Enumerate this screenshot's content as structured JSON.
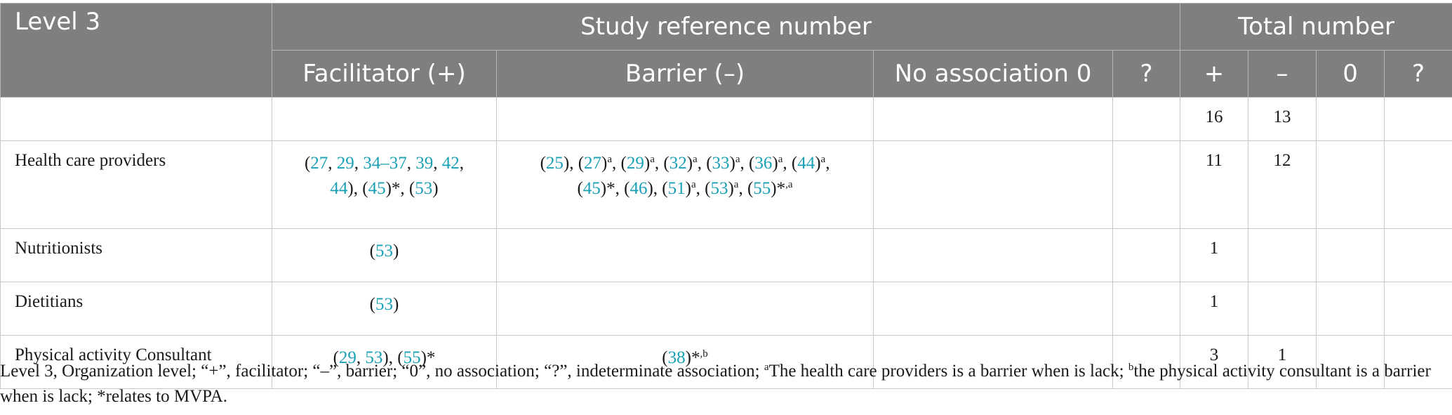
{
  "header": {
    "level_label": "Level 3",
    "study_ref_label": "Study reference number",
    "total_label": "Total number",
    "sub_facilitator": "Facilitator (+)",
    "sub_barrier": "Barrier (–)",
    "sub_no_assoc": "No association 0",
    "sub_q": "?",
    "sub_plus": "+",
    "sub_minus": "–",
    "sub_zero": "0",
    "sub_q2": "?"
  },
  "rows": [
    {
      "label": "",
      "facilitator": [],
      "barrier": [],
      "no_association": "",
      "question": "",
      "total_plus": "16",
      "total_minus": "13",
      "total_zero": "",
      "total_q": ""
    },
    {
      "label": "Health care providers",
      "facilitator": [
        {
          "t": "(",
          "k": "p"
        },
        {
          "t": "27",
          "k": "r"
        },
        {
          "t": ", ",
          "k": "p"
        },
        {
          "t": "29",
          "k": "r"
        },
        {
          "t": ", ",
          "k": "p"
        },
        {
          "t": "34–37",
          "k": "r"
        },
        {
          "t": ", ",
          "k": "p"
        },
        {
          "t": "39",
          "k": "r"
        },
        {
          "t": ", ",
          "k": "p"
        },
        {
          "t": "42",
          "k": "r"
        },
        {
          "t": ",",
          "k": "p"
        },
        {
          "t": "",
          "k": "br"
        },
        {
          "t": "44",
          "k": "r"
        },
        {
          "t": "), (",
          "k": "p"
        },
        {
          "t": "45",
          "k": "r"
        },
        {
          "t": ")*, (",
          "k": "p"
        },
        {
          "t": "53",
          "k": "r"
        },
        {
          "t": ")",
          "k": "p"
        }
      ],
      "barrier": [
        {
          "t": "(",
          "k": "p"
        },
        {
          "t": "25",
          "k": "r"
        },
        {
          "t": "), (",
          "k": "p"
        },
        {
          "t": "27",
          "k": "r"
        },
        {
          "t": ")",
          "k": "p"
        },
        {
          "t": "a",
          "k": "s"
        },
        {
          "t": ", (",
          "k": "p"
        },
        {
          "t": "29",
          "k": "r"
        },
        {
          "t": ")",
          "k": "p"
        },
        {
          "t": "a",
          "k": "s"
        },
        {
          "t": ", (",
          "k": "p"
        },
        {
          "t": "32",
          "k": "r"
        },
        {
          "t": ")",
          "k": "p"
        },
        {
          "t": "a",
          "k": "s"
        },
        {
          "t": ", (",
          "k": "p"
        },
        {
          "t": "33",
          "k": "r"
        },
        {
          "t": ")",
          "k": "p"
        },
        {
          "t": "a",
          "k": "s"
        },
        {
          "t": ", (",
          "k": "p"
        },
        {
          "t": "36",
          "k": "r"
        },
        {
          "t": ")",
          "k": "p"
        },
        {
          "t": "a",
          "k": "s"
        },
        {
          "t": ", (",
          "k": "p"
        },
        {
          "t": "44",
          "k": "r"
        },
        {
          "t": ")",
          "k": "p"
        },
        {
          "t": "a",
          "k": "s"
        },
        {
          "t": ",",
          "k": "p"
        },
        {
          "t": "",
          "k": "br"
        },
        {
          "t": "(",
          "k": "p"
        },
        {
          "t": "45",
          "k": "r"
        },
        {
          "t": ")*, (",
          "k": "p"
        },
        {
          "t": "46",
          "k": "r"
        },
        {
          "t": "), (",
          "k": "p"
        },
        {
          "t": "51",
          "k": "r"
        },
        {
          "t": ")",
          "k": "p"
        },
        {
          "t": "a",
          "k": "s"
        },
        {
          "t": ", (",
          "k": "p"
        },
        {
          "t": "53",
          "k": "r"
        },
        {
          "t": ")",
          "k": "p"
        },
        {
          "t": "a",
          "k": "s"
        },
        {
          "t": ", (",
          "k": "p"
        },
        {
          "t": "55",
          "k": "r"
        },
        {
          "t": ")*",
          "k": "p"
        },
        {
          "t": ",a",
          "k": "s"
        }
      ],
      "no_association": "",
      "question": "",
      "total_plus": "11",
      "total_minus": "12",
      "total_zero": "",
      "total_q": ""
    },
    {
      "label": "Nutritionists",
      "facilitator": [
        {
          "t": "(",
          "k": "p"
        },
        {
          "t": "53",
          "k": "r"
        },
        {
          "t": ")",
          "k": "p"
        }
      ],
      "barrier": [],
      "no_association": "",
      "question": "",
      "total_plus": "1",
      "total_minus": "",
      "total_zero": "",
      "total_q": ""
    },
    {
      "label": "Dietitians",
      "facilitator": [
        {
          "t": "(",
          "k": "p"
        },
        {
          "t": "53",
          "k": "r"
        },
        {
          "t": ")",
          "k": "p"
        }
      ],
      "barrier": [],
      "no_association": "",
      "question": "",
      "total_plus": "1",
      "total_minus": "",
      "total_zero": "",
      "total_q": ""
    },
    {
      "label": "Physical activity Consultant",
      "facilitator": [
        {
          "t": "(",
          "k": "p"
        },
        {
          "t": "29",
          "k": "r"
        },
        {
          "t": ", ",
          "k": "p"
        },
        {
          "t": "53",
          "k": "r"
        },
        {
          "t": "), (",
          "k": "p"
        },
        {
          "t": "55",
          "k": "r"
        },
        {
          "t": ")*",
          "k": "p"
        }
      ],
      "barrier": [
        {
          "t": "(",
          "k": "p"
        },
        {
          "t": "38",
          "k": "r"
        },
        {
          "t": ")*",
          "k": "p"
        },
        {
          "t": ",b",
          "k": "s"
        }
      ],
      "no_association": "",
      "question": "",
      "total_plus": "3",
      "total_minus": "1",
      "total_zero": "",
      "total_q": ""
    }
  ],
  "caption": [
    {
      "t": "Level 3, Organization level; “+”, facilitator; “–”, barrier; “0”, no association; “?”, indeterminate association; ",
      "k": "p"
    },
    {
      "t": "a",
      "k": "s"
    },
    {
      "t": "The health care providers is a barrier when is lack; ",
      "k": "p"
    },
    {
      "t": "b",
      "k": "s"
    },
    {
      "t": "the physical activity consultant is a barrier when is lack; *relates to MVPA.",
      "k": "p"
    }
  ],
  "colors": {
    "header_bg": "#7e7f7e",
    "header_text": "#ffffff",
    "reference_link": "#1aa0b5",
    "grid": "#c8c8c8"
  }
}
